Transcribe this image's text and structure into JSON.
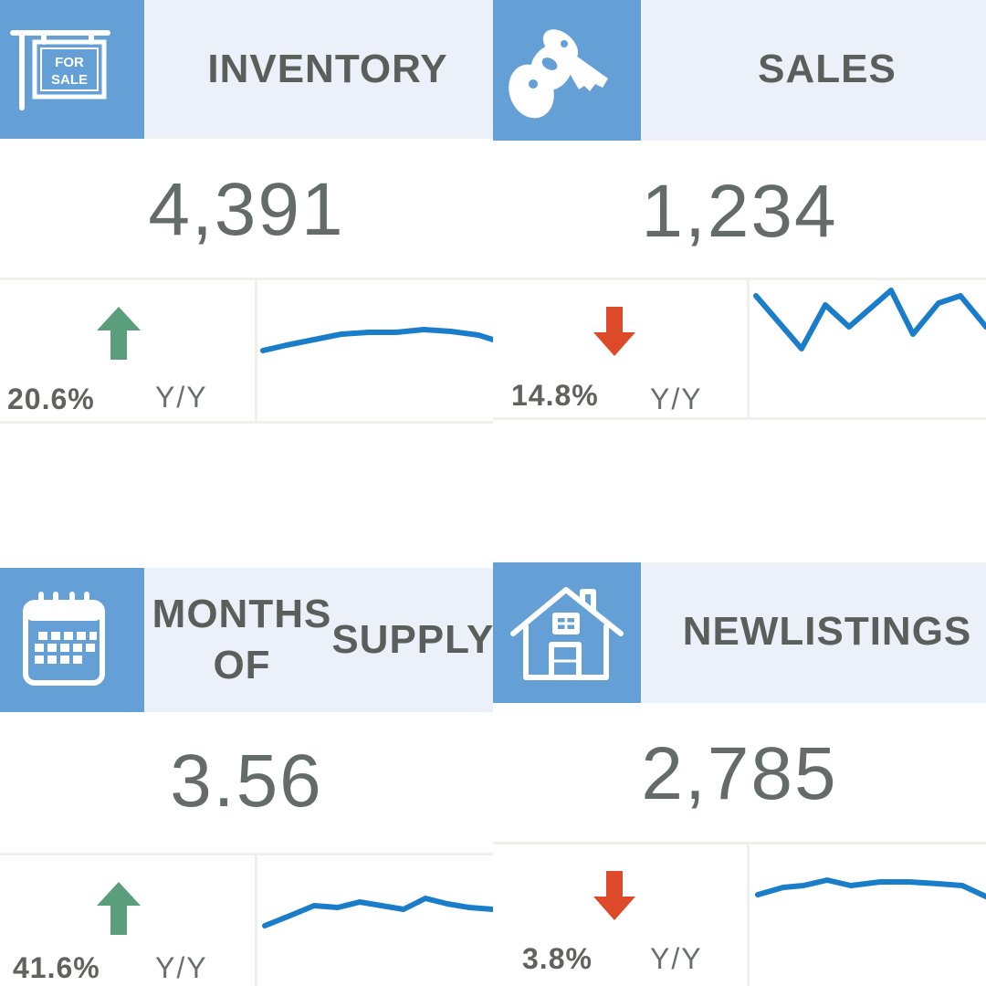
{
  "cards": [
    {
      "id": "inventory",
      "title": "INVENTORY",
      "value": "4,391",
      "change": "20.6%",
      "period": "Y/Y",
      "direction": "up",
      "icon": "for-sale-sign-icon",
      "sign_text": [
        "FOR",
        "SALE"
      ]
    },
    {
      "id": "sales",
      "title": "SALES",
      "value": "1,234",
      "change": "14.8%",
      "period": "Y/Y",
      "direction": "down",
      "icon": "keys-icon"
    },
    {
      "id": "months-of-supply",
      "title_lines": [
        "MONTHS OF",
        "SUPPLY"
      ],
      "value": "3.56",
      "change": "41.6%",
      "period": "Y/Y",
      "direction": "up",
      "icon": "calendar-icon"
    },
    {
      "id": "new-listings",
      "title_lines": [
        "NEW",
        "LISTINGS"
      ],
      "value": "2,785",
      "change": "3.8%",
      "period": "Y/Y",
      "direction": "down",
      "icon": "house-icon"
    }
  ],
  "colors": {
    "icon_bg": "#649fd6",
    "header_bg": "#ebf0f9",
    "up_arrow": "#5a9e7b",
    "down_arrow": "#dc4a2a",
    "sparkline": "#1a7dc9",
    "text": "#5b5f5c"
  }
}
